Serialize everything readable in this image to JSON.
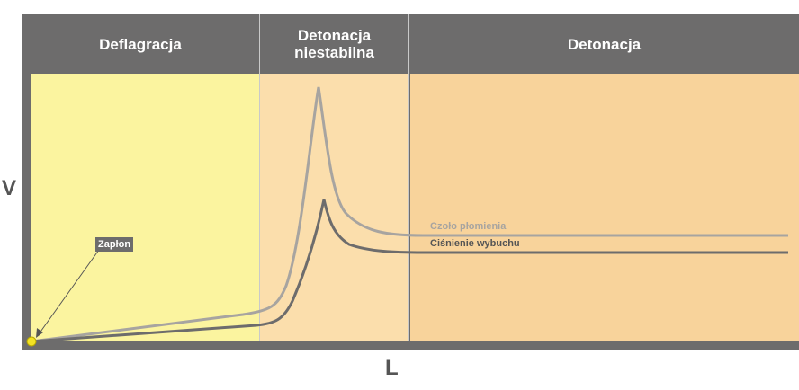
{
  "zones": [
    {
      "id": "deflagration",
      "label": "Deflagracja",
      "color": "#fbf49f"
    },
    {
      "id": "unstable",
      "label": "Detonacja\nniestabilna",
      "color": "#fbdeac"
    },
    {
      "id": "detonation",
      "label": "Detonacja",
      "color": "#f8d39b"
    }
  ],
  "axes": {
    "y_label": "V",
    "x_label": "L"
  },
  "ignition": {
    "label": "Zapłon",
    "marker_color": "#f2e225"
  },
  "curves": {
    "flame_front": {
      "label": "Czoło płomienia",
      "color": "#a7a4a0"
    },
    "blast_pressure": {
      "label": "Ciśnienie wybuchu",
      "color": "#6d6c6c"
    }
  },
  "colors": {
    "frame": "#6d6c6c",
    "text_light": "#ffffff"
  }
}
